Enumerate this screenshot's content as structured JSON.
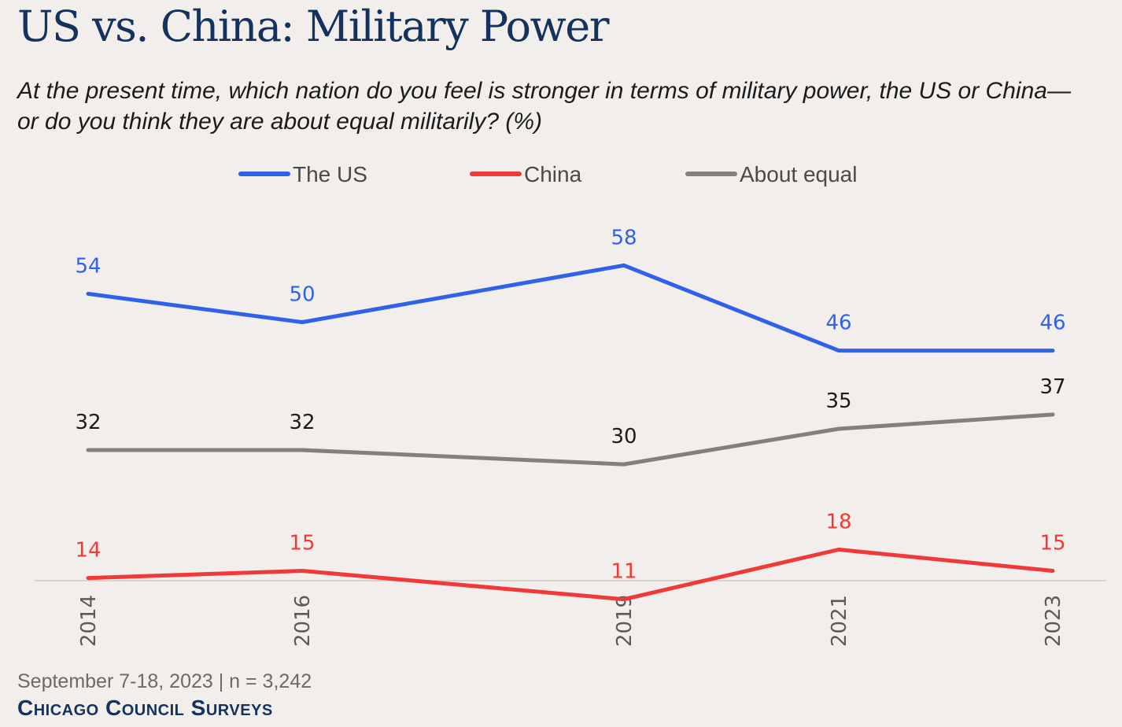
{
  "title": "US vs. China: Military Power",
  "subtitle": "At the present time, which nation do you feel is stronger in terms of military power, the US or China—or do you think they are about equal militarily? (%)",
  "footer": {
    "note": "September 7-18, 2023 | n = 3,242",
    "source": "Chicago Council Surveys"
  },
  "chart_data": {
    "type": "line",
    "title": "US vs. China: Military Power",
    "xlabel": "",
    "ylabel": "%",
    "x": [
      "2014",
      "2016",
      "2019",
      "2021",
      "2023"
    ],
    "ylim": [
      0,
      70
    ],
    "grid": false,
    "legend_position": "top-center",
    "series": [
      {
        "name": "The US",
        "color": "#2f62e8",
        "values": [
          54,
          50,
          58,
          46,
          46
        ]
      },
      {
        "name": "China",
        "color": "#f03a3a",
        "values": [
          14,
          15,
          11,
          18,
          15
        ]
      },
      {
        "name": "About equal",
        "color": "#808080",
        "values": [
          32,
          32,
          30,
          35,
          37
        ]
      }
    ]
  }
}
